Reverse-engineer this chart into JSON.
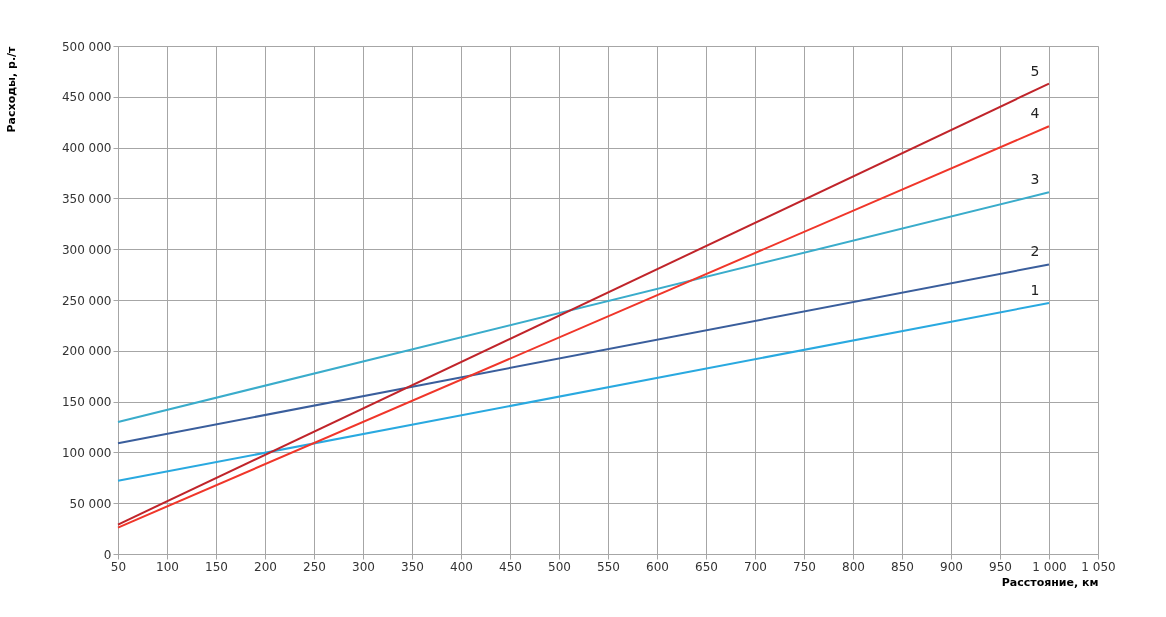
{
  "chart_data": {
    "type": "line",
    "xlabel": "Расстояние, км",
    "ylabel": "Расходы, р./т",
    "series": [
      {
        "name": "1",
        "color": "#29a9e0",
        "values": [
          72000,
          247000
        ]
      },
      {
        "name": "2",
        "color": "#3a5e9c",
        "values": [
          109000,
          285000
        ]
      },
      {
        "name": "3",
        "color": "#3aaccb",
        "values": [
          130000,
          356000
        ]
      },
      {
        "name": "4",
        "color": "#f0362a",
        "values": [
          26000,
          421000
        ]
      },
      {
        "name": "5",
        "color": "#c0242a",
        "values": [
          29000,
          463000
        ]
      }
    ],
    "x": [
      50,
      1000
    ],
    "xlim": [
      50,
      1050
    ],
    "xticks": [
      50,
      100,
      150,
      200,
      250,
      300,
      350,
      400,
      450,
      500,
      550,
      600,
      650,
      700,
      750,
      800,
      850,
      900,
      950,
      {
        "value": 1000,
        "label": "1 000"
      },
      {
        "value": 1050,
        "label": "1 050"
      }
    ],
    "ylim": [
      0,
      500000
    ],
    "yticks": [
      0,
      {
        "value": 50000,
        "label": "50 000"
      },
      {
        "value": 100000,
        "label": "100 000"
      },
      {
        "value": 150000,
        "label": "150 000"
      },
      {
        "value": 200000,
        "label": "200 000"
      },
      {
        "value": 250000,
        "label": "250 000"
      },
      {
        "value": 300000,
        "label": "300 000"
      },
      {
        "value": 350000,
        "label": "350 000"
      },
      {
        "value": 400000,
        "label": "400 000"
      },
      {
        "value": 450000,
        "label": "450 000"
      },
      {
        "value": 500000,
        "label": "500 000"
      }
    ],
    "grid": true,
    "legend": false,
    "marker": "none",
    "line_style": "solid"
  }
}
